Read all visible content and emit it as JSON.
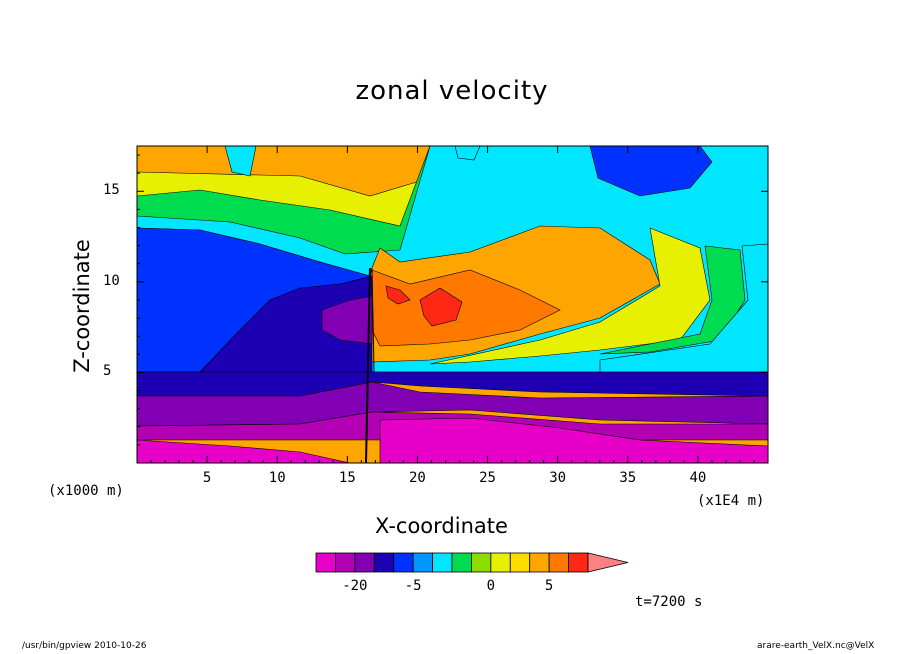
{
  "chart_data": {
    "type": "heatmap",
    "title": "zonal velocity",
    "xlabel": "X-coordinate",
    "ylabel": "Z-coordinate",
    "x_unit": "(x1000 m)",
    "x_multiplier": "(x1E4 m)",
    "xlim": [
      0,
      45
    ],
    "ylim": [
      0,
      17.5
    ],
    "x_ticks": [
      5,
      10,
      15,
      20,
      25,
      30,
      35,
      40
    ],
    "y_ticks": [
      5,
      10,
      15
    ],
    "colorbar": {
      "tick_labels": [
        "-20",
        "-5",
        "0",
        "5"
      ],
      "tick_values": [
        -20,
        -5,
        0,
        5
      ],
      "levels": [
        -30,
        -25,
        -20,
        -15,
        -10,
        -5,
        -3,
        -2,
        -1,
        0,
        1,
        2,
        5,
        10,
        15,
        20
      ],
      "colors": [
        "#e600c8",
        "#b400b4",
        "#8200b4",
        "#1e00b4",
        "#0032ff",
        "#0096ff",
        "#00e6ff",
        "#00dc50",
        "#8cdc00",
        "#e6f000",
        "#ffdc00",
        "#ffa500",
        "#ff7800",
        "#ff2814",
        "#ff8080"
      ]
    },
    "annotation": "t=7200 s"
  },
  "footer": {
    "left": "/usr/bin/gpview   2010-10-26",
    "right": "arare-earth_VelX.nc@VelX"
  }
}
